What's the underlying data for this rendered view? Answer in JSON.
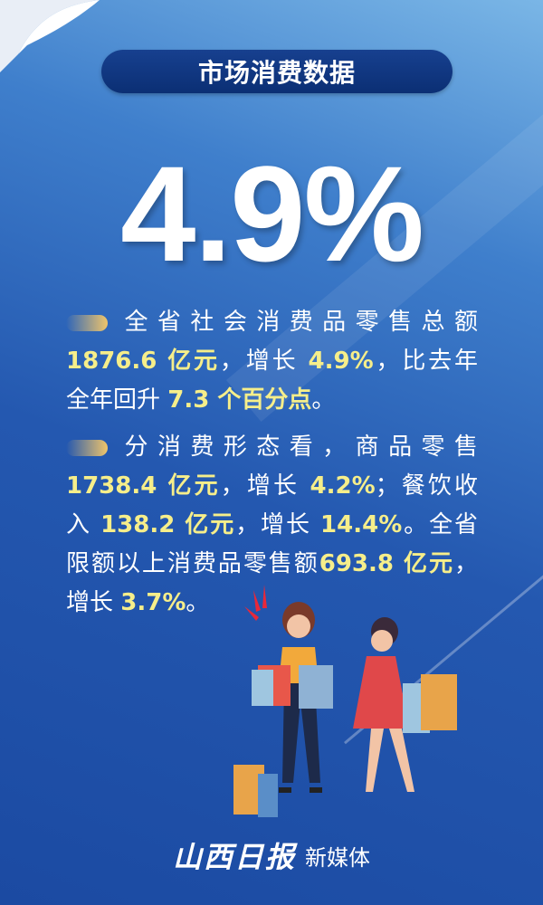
{
  "title": "市场消费数据",
  "headline": "4.9%",
  "paragraph1": [
    [
      {
        "t": "全省社会消费品零售总额",
        "h": false
      }
    ],
    [
      {
        "t": "1876.6 亿元",
        "h": true
      },
      {
        "t": "，增长 ",
        "h": false
      },
      {
        "t": "4.9%",
        "h": true
      },
      {
        "t": "，比去年",
        "h": false
      }
    ],
    [
      {
        "t": "全年回升 ",
        "h": false
      },
      {
        "t": "7.3 个百分点",
        "h": true
      },
      {
        "t": "。",
        "h": false
      }
    ]
  ],
  "paragraph2": [
    [
      {
        "t": "分消费形态看，商品零售",
        "h": false
      }
    ],
    [
      {
        "t": "1738.4 亿元",
        "h": true
      },
      {
        "t": "，增长 ",
        "h": false
      },
      {
        "t": "4.2%",
        "h": true
      },
      {
        "t": "；餐饮收",
        "h": false
      }
    ],
    [
      {
        "t": "入 ",
        "h": false
      },
      {
        "t": "138.2 亿元",
        "h": true
      },
      {
        "t": "，增长 ",
        "h": false
      },
      {
        "t": "14.4%",
        "h": true
      },
      {
        "t": "。全省",
        "h": false
      }
    ],
    [
      {
        "t": "限额以上消费品零售额",
        "h": false
      },
      {
        "t": "693.8 亿元",
        "h": true
      },
      {
        "t": "，",
        "h": false
      }
    ],
    [
      {
        "t": "增长 ",
        "h": false
      },
      {
        "t": "3.7%",
        "h": true
      },
      {
        "t": "。",
        "h": false
      }
    ]
  ],
  "footer": {
    "logo": "山西日报",
    "media": "新媒体"
  },
  "colors": {
    "highlight": "#f6ee8a",
    "title_pill": "#0b2f74",
    "background": "#1b4aa2"
  }
}
